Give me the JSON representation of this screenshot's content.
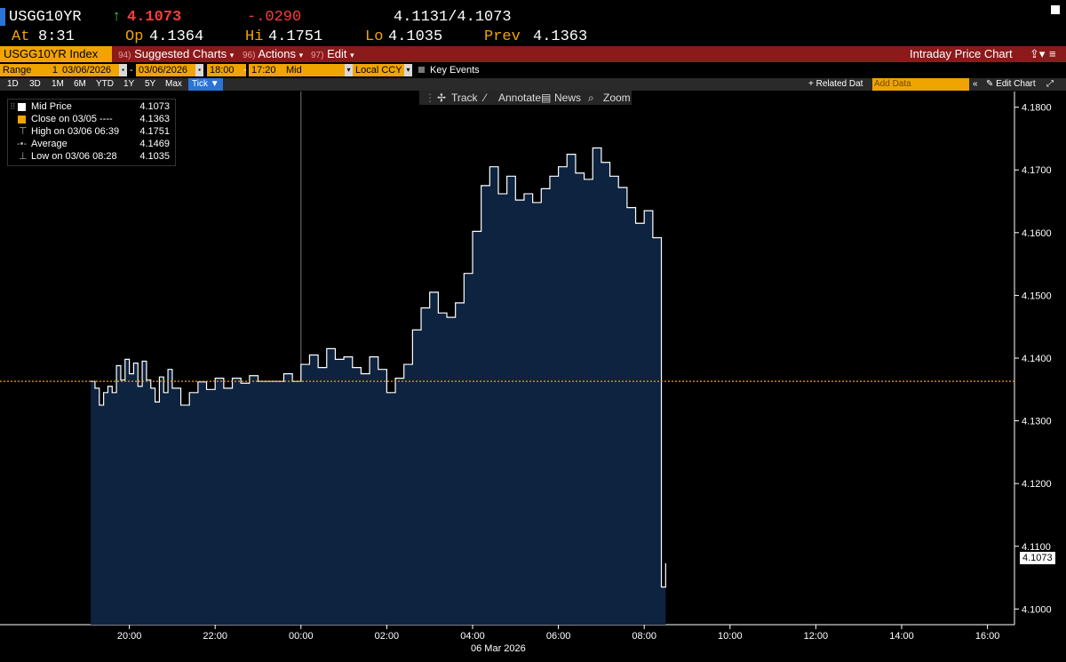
{
  "quote": {
    "ticker": "USGG10YR",
    "last": "4.1073",
    "change": "-.0290",
    "bid_ask": "4.1131/4.1073",
    "at_label": "At",
    "at_time": "8:31",
    "open_label": "Op",
    "open": "4.1364",
    "high_label": "Hi",
    "high": "4.1751",
    "low_label": "Lo",
    "low": "4.1035",
    "prev_label": "Prev",
    "prev": "4.1363"
  },
  "function_bar": {
    "security": "USGG10YR Index",
    "menus": [
      {
        "num": "94)",
        "label": "Suggested Charts"
      },
      {
        "num": "96)",
        "label": "Actions"
      },
      {
        "num": "97)",
        "label": "Edit"
      }
    ],
    "title": "Intraday Price Chart"
  },
  "range_bar": {
    "range_label": "Range",
    "range_value": "1",
    "start_date": "03/06/2026",
    "end_date": "03/06/2026",
    "start_time": "18:00",
    "end_time": "17:20",
    "pricing": "Mid",
    "currency": "Local CCY",
    "key_events": "Key Events"
  },
  "period_bar": {
    "periods": [
      "1D",
      "3D",
      "1M",
      "6M",
      "YTD",
      "1Y",
      "5Y",
      "Max"
    ],
    "selected": "Tick",
    "related": "+ Related Dat",
    "add_data_placeholder": "Add Data",
    "edit_chart": "Edit Chart"
  },
  "toolbar": {
    "track": "Track",
    "annotate": "Annotate",
    "news": "News",
    "zoom": "Zoom"
  },
  "legend": [
    {
      "label": "Mid Price",
      "value": "4.1073",
      "icon": "white-square"
    },
    {
      "label": "Close on 03/05 ----",
      "value": "4.1363",
      "icon": "orange-square"
    },
    {
      "label": "High on 03/06 06:39",
      "value": "4.1751",
      "icon": "high-marker"
    },
    {
      "label": "Average",
      "value": "4.1469",
      "icon": "average-marker"
    },
    {
      "label": "Low on 03/06 08:28",
      "value": "4.1035",
      "icon": "low-marker"
    }
  ],
  "chart_data": {
    "type": "area",
    "xlabel": "06 Mar 2026",
    "ylim": [
      4.0975,
      4.1825
    ],
    "x_ticks": [
      "20:00",
      "22:00",
      "00:00",
      "02:00",
      "04:00",
      "06:00",
      "08:00",
      "10:00",
      "12:00",
      "14:00",
      "16:00"
    ],
    "y_ticks": [
      "4.1000",
      "4.1100",
      "4.1200",
      "4.1300",
      "4.1400",
      "4.1500",
      "4.1600",
      "4.1700",
      "4.1800"
    ],
    "reference_line": {
      "name": "Close on 03/05",
      "value": 4.1363,
      "color": "#f0a400"
    },
    "last_value": "4.1073",
    "series": [
      {
        "name": "Mid Price",
        "color": "#ffffff",
        "fill": "#0d2340",
        "time_hours_from_1800": [
          1.1,
          1.2,
          1.3,
          1.4,
          1.5,
          1.6,
          1.7,
          1.8,
          1.9,
          2.0,
          2.1,
          2.2,
          2.3,
          2.4,
          2.5,
          2.6,
          2.7,
          2.8,
          2.9,
          3.0,
          3.2,
          3.4,
          3.6,
          3.8,
          4.0,
          4.2,
          4.4,
          4.6,
          4.8,
          5.0,
          5.2,
          5.4,
          5.6,
          5.8,
          6.0,
          6.2,
          6.4,
          6.6,
          6.8,
          7.0,
          7.2,
          7.4,
          7.6,
          7.8,
          8.0,
          8.2,
          8.4,
          8.6,
          8.8,
          9.0,
          9.2,
          9.4,
          9.6,
          9.8,
          10.0,
          10.2,
          10.4,
          10.6,
          10.8,
          11.0,
          11.2,
          11.4,
          11.6,
          11.8,
          12.0,
          12.2,
          12.4,
          12.6,
          12.8,
          13.0,
          13.2,
          13.4,
          13.6,
          13.8,
          14.0,
          14.2,
          14.4,
          14.5
        ],
        "values": [
          4.1363,
          4.1352,
          4.1325,
          4.1345,
          4.1355,
          4.1345,
          4.1388,
          4.1365,
          4.1398,
          4.1375,
          4.1392,
          4.1355,
          4.1395,
          4.1365,
          4.1352,
          4.133,
          4.137,
          4.1345,
          4.1382,
          4.1352,
          4.1325,
          4.1345,
          4.1362,
          4.135,
          4.1368,
          4.1352,
          4.1368,
          4.136,
          4.1372,
          4.1363,
          4.1363,
          4.1363,
          4.1375,
          4.1363,
          4.139,
          4.1405,
          4.1385,
          4.1415,
          4.1398,
          4.1402,
          4.1385,
          4.1375,
          4.1402,
          4.1382,
          4.1345,
          4.1368,
          4.139,
          4.1445,
          4.148,
          4.1505,
          4.1472,
          4.1465,
          4.1488,
          4.1535,
          4.1602,
          4.1675,
          4.1705,
          4.1662,
          4.169,
          4.1652,
          4.1662,
          4.1648,
          4.167,
          4.169,
          4.1705,
          4.1725,
          4.1695,
          4.1685,
          4.1735,
          4.1712,
          4.169,
          4.1672,
          4.164,
          4.1615,
          4.1635,
          4.1592,
          4.1035,
          4.1073
        ]
      }
    ]
  }
}
